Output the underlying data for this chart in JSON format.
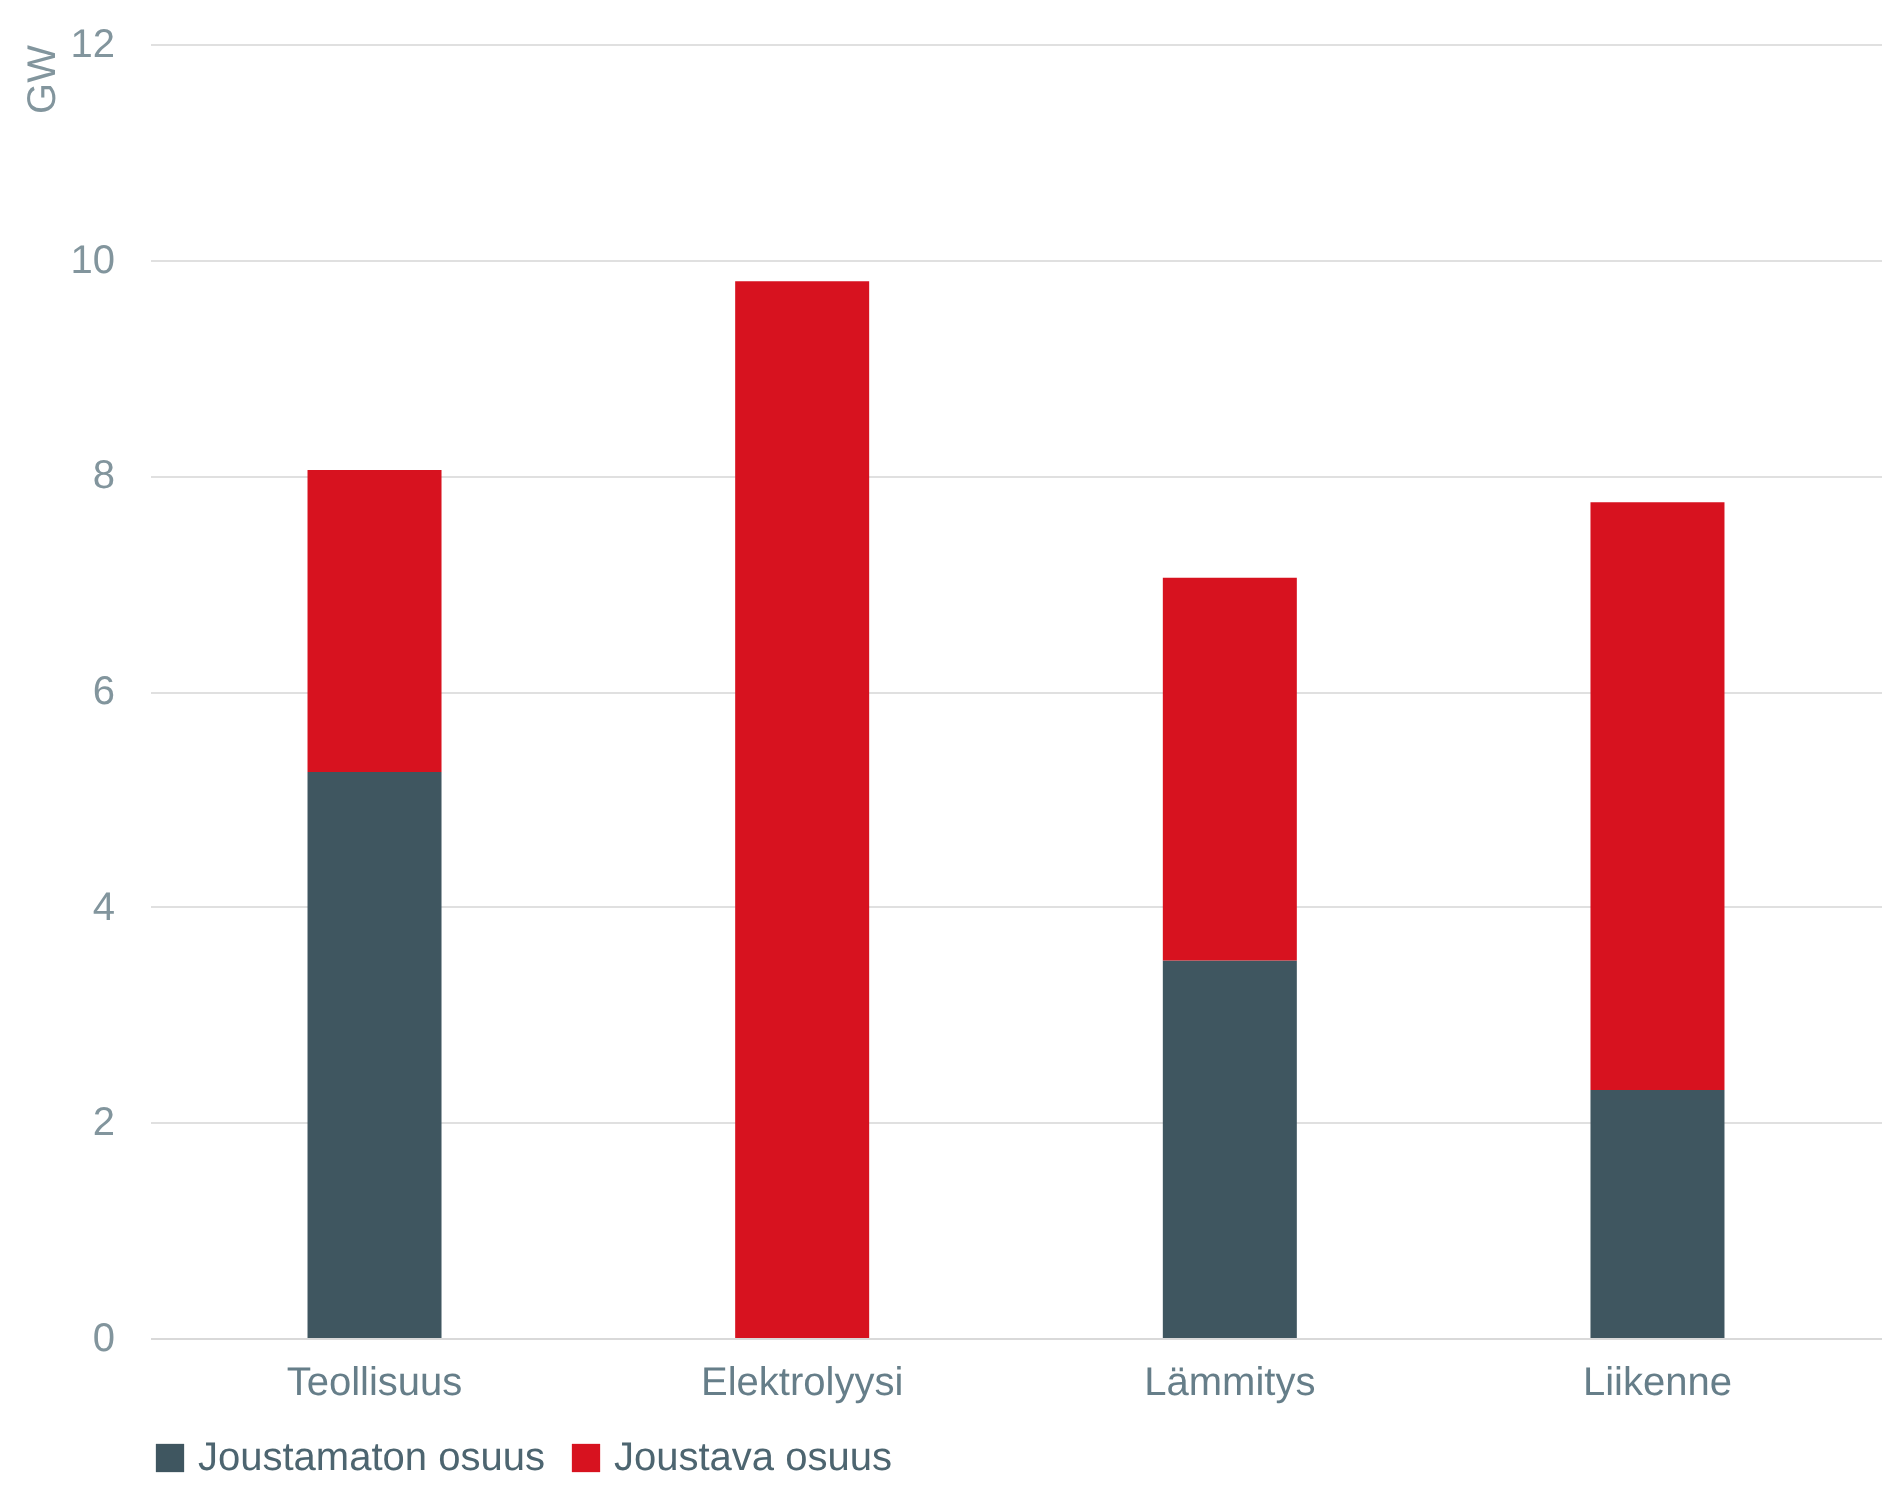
{
  "chart_data": {
    "type": "bar",
    "stacked": true,
    "ylabel": "GW",
    "categories": [
      "Teollisuus",
      "Elektrolyysi",
      "Lämmitys",
      "Liikenne"
    ],
    "series": [
      {
        "name": "Joustamaton osuus",
        "color": "#3f5660",
        "values": [
          5.25,
          0,
          3.5,
          2.3
        ]
      },
      {
        "name": "Joustava osuus",
        "color": "#d7121f",
        "values": [
          2.8,
          9.8,
          3.55,
          5.45
        ]
      }
    ],
    "ylim": [
      0,
      12
    ],
    "yticks": [
      0,
      2,
      4,
      6,
      8,
      10,
      12
    ],
    "grid": "y",
    "legend": "bottom"
  }
}
